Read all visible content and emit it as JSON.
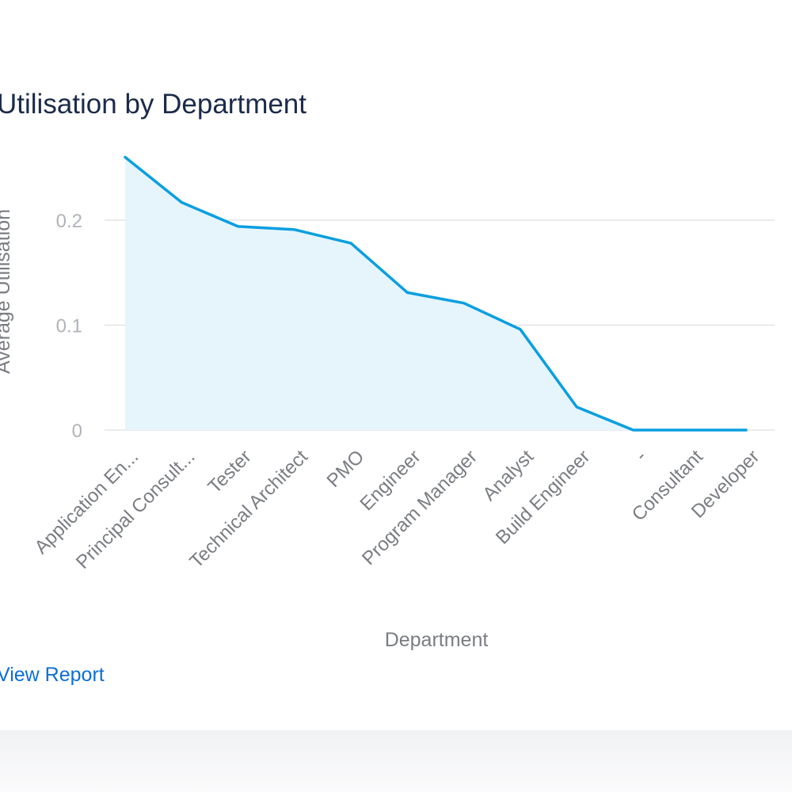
{
  "title": "Utilisation by Department",
  "view_report_label": "View Report",
  "chart_data": {
    "type": "area",
    "title": "Utilisation by Department",
    "xlabel": "Department",
    "ylabel": "Average Utilisation",
    "categories": [
      "Application En...",
      "Principal Consult...",
      "Tester",
      "Technical Architect",
      "PMO",
      "Engineer",
      "Program Manager",
      "Analyst",
      "Build Engineer",
      "-",
      "Consultant",
      "Developer"
    ],
    "values": [
      0.26,
      0.217,
      0.194,
      0.191,
      0.178,
      0.131,
      0.121,
      0.096,
      0.022,
      0,
      0,
      0
    ],
    "ylim": [
      0,
      0.26
    ],
    "yticks": [
      0,
      0.1,
      0.2
    ],
    "ytick_labels": [
      "0",
      "0.1",
      "0.2"
    ],
    "grid": true,
    "colors": {
      "line": "#0a9fe0",
      "fill": "#e6f5fc",
      "grid": "#dcdfe3",
      "tick_text": "#b0b3b8",
      "axis_label": "#7a7d82"
    }
  }
}
